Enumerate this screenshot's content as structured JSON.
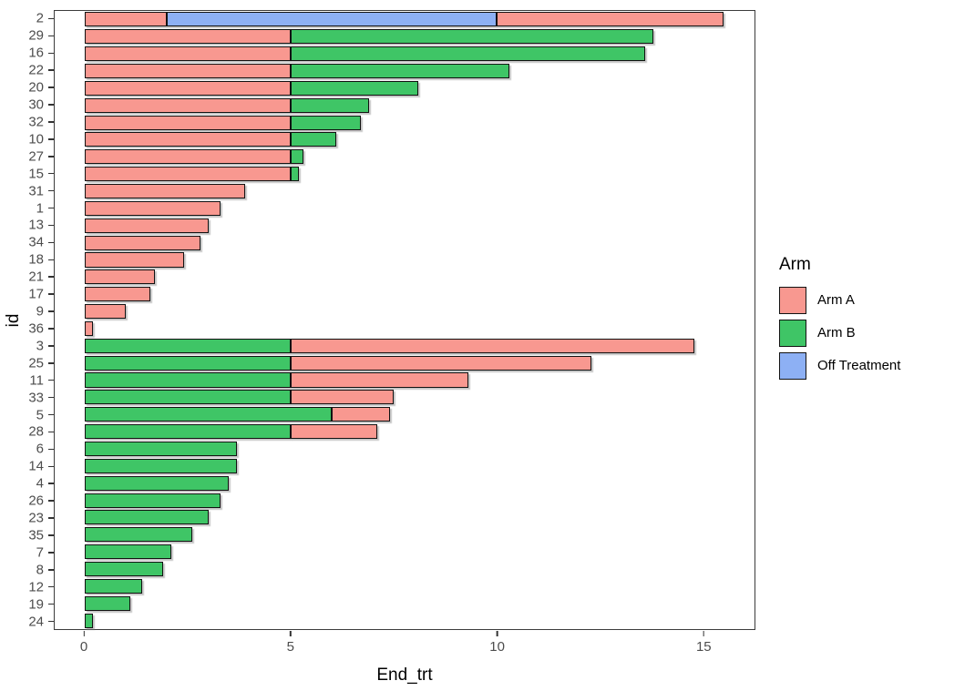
{
  "chart_data": {
    "type": "bar",
    "orientation": "horizontal",
    "stacked": true,
    "title": "",
    "xlabel": "End_trt",
    "ylabel": "id",
    "xlim": [
      -0.73,
      16.25
    ],
    "x_ticks": [
      0,
      5,
      10,
      15
    ],
    "grid": false,
    "legend": {
      "title": "Arm",
      "position": "right",
      "entries": [
        {
          "label": "Arm A",
          "color": "#F89890"
        },
        {
          "label": "Arm B",
          "color": "#3FC566"
        },
        {
          "label": "Off Treatment",
          "color": "#8DB0F4"
        }
      ]
    },
    "rows": [
      {
        "id": "2",
        "segments": [
          {
            "arm": "Arm A",
            "start": 0,
            "end": 2
          },
          {
            "arm": "Off Treatment",
            "start": 2,
            "end": 10
          },
          {
            "arm": "Arm A",
            "start": 10,
            "end": 15.5
          }
        ]
      },
      {
        "id": "29",
        "segments": [
          {
            "arm": "Arm A",
            "start": 0,
            "end": 5
          },
          {
            "arm": "Arm B",
            "start": 5,
            "end": 13.8
          }
        ]
      },
      {
        "id": "16",
        "segments": [
          {
            "arm": "Arm A",
            "start": 0,
            "end": 5
          },
          {
            "arm": "Arm B",
            "start": 5,
            "end": 13.6
          }
        ]
      },
      {
        "id": "22",
        "segments": [
          {
            "arm": "Arm A",
            "start": 0,
            "end": 5
          },
          {
            "arm": "Arm B",
            "start": 5,
            "end": 10.3
          }
        ]
      },
      {
        "id": "20",
        "segments": [
          {
            "arm": "Arm A",
            "start": 0,
            "end": 5
          },
          {
            "arm": "Arm B",
            "start": 5,
            "end": 8.1
          }
        ]
      },
      {
        "id": "30",
        "segments": [
          {
            "arm": "Arm A",
            "start": 0,
            "end": 5
          },
          {
            "arm": "Arm B",
            "start": 5,
            "end": 6.9
          }
        ]
      },
      {
        "id": "32",
        "segments": [
          {
            "arm": "Arm A",
            "start": 0,
            "end": 5
          },
          {
            "arm": "Arm B",
            "start": 5,
            "end": 6.7
          }
        ]
      },
      {
        "id": "10",
        "segments": [
          {
            "arm": "Arm A",
            "start": 0,
            "end": 5
          },
          {
            "arm": "Arm B",
            "start": 5,
            "end": 6.1
          }
        ]
      },
      {
        "id": "27",
        "segments": [
          {
            "arm": "Arm A",
            "start": 0,
            "end": 5
          },
          {
            "arm": "Arm B",
            "start": 5,
            "end": 5.3
          }
        ]
      },
      {
        "id": "15",
        "segments": [
          {
            "arm": "Arm A",
            "start": 0,
            "end": 5
          },
          {
            "arm": "Arm B",
            "start": 5,
            "end": 5.2
          }
        ]
      },
      {
        "id": "31",
        "segments": [
          {
            "arm": "Arm A",
            "start": 0,
            "end": 3.9
          }
        ]
      },
      {
        "id": "1",
        "segments": [
          {
            "arm": "Arm A",
            "start": 0,
            "end": 3.3
          }
        ]
      },
      {
        "id": "13",
        "segments": [
          {
            "arm": "Arm A",
            "start": 0,
            "end": 3.0
          }
        ]
      },
      {
        "id": "34",
        "segments": [
          {
            "arm": "Arm A",
            "start": 0,
            "end": 2.8
          }
        ]
      },
      {
        "id": "18",
        "segments": [
          {
            "arm": "Arm A",
            "start": 0,
            "end": 2.4
          }
        ]
      },
      {
        "id": "21",
        "segments": [
          {
            "arm": "Arm A",
            "start": 0,
            "end": 1.7
          }
        ]
      },
      {
        "id": "17",
        "segments": [
          {
            "arm": "Arm A",
            "start": 0,
            "end": 1.6
          }
        ]
      },
      {
        "id": "9",
        "segments": [
          {
            "arm": "Arm A",
            "start": 0,
            "end": 1.0
          }
        ]
      },
      {
        "id": "36",
        "segments": [
          {
            "arm": "Arm A",
            "start": 0,
            "end": 0.2
          }
        ]
      },
      {
        "id": "3",
        "segments": [
          {
            "arm": "Arm B",
            "start": 0,
            "end": 5
          },
          {
            "arm": "Arm A",
            "start": 5,
            "end": 14.8
          }
        ]
      },
      {
        "id": "25",
        "segments": [
          {
            "arm": "Arm B",
            "start": 0,
            "end": 5
          },
          {
            "arm": "Arm A",
            "start": 5,
            "end": 12.3
          }
        ]
      },
      {
        "id": "11",
        "segments": [
          {
            "arm": "Arm B",
            "start": 0,
            "end": 5
          },
          {
            "arm": "Arm A",
            "start": 5,
            "end": 9.3
          }
        ]
      },
      {
        "id": "33",
        "segments": [
          {
            "arm": "Arm B",
            "start": 0,
            "end": 5
          },
          {
            "arm": "Arm A",
            "start": 5,
            "end": 7.5
          }
        ]
      },
      {
        "id": "5",
        "segments": [
          {
            "arm": "Arm B",
            "start": 0,
            "end": 6
          },
          {
            "arm": "Arm A",
            "start": 6,
            "end": 7.4
          }
        ]
      },
      {
        "id": "28",
        "segments": [
          {
            "arm": "Arm B",
            "start": 0,
            "end": 5
          },
          {
            "arm": "Arm A",
            "start": 5,
            "end": 7.1
          }
        ]
      },
      {
        "id": "6",
        "segments": [
          {
            "arm": "Arm B",
            "start": 0,
            "end": 3.7
          }
        ]
      },
      {
        "id": "14",
        "segments": [
          {
            "arm": "Arm B",
            "start": 0,
            "end": 3.7
          }
        ]
      },
      {
        "id": "4",
        "segments": [
          {
            "arm": "Arm B",
            "start": 0,
            "end": 3.5
          }
        ]
      },
      {
        "id": "26",
        "segments": [
          {
            "arm": "Arm B",
            "start": 0,
            "end": 3.3
          }
        ]
      },
      {
        "id": "23",
        "segments": [
          {
            "arm": "Arm B",
            "start": 0,
            "end": 3.0
          }
        ]
      },
      {
        "id": "35",
        "segments": [
          {
            "arm": "Arm B",
            "start": 0,
            "end": 2.6
          }
        ]
      },
      {
        "id": "7",
        "segments": [
          {
            "arm": "Arm B",
            "start": 0,
            "end": 2.1
          }
        ]
      },
      {
        "id": "8",
        "segments": [
          {
            "arm": "Arm B",
            "start": 0,
            "end": 1.9
          }
        ]
      },
      {
        "id": "12",
        "segments": [
          {
            "arm": "Arm B",
            "start": 0,
            "end": 1.4
          }
        ]
      },
      {
        "id": "19",
        "segments": [
          {
            "arm": "Arm B",
            "start": 0,
            "end": 1.1
          }
        ]
      },
      {
        "id": "24",
        "segments": [
          {
            "arm": "Arm B",
            "start": 0,
            "end": 0.2
          }
        ]
      }
    ]
  }
}
